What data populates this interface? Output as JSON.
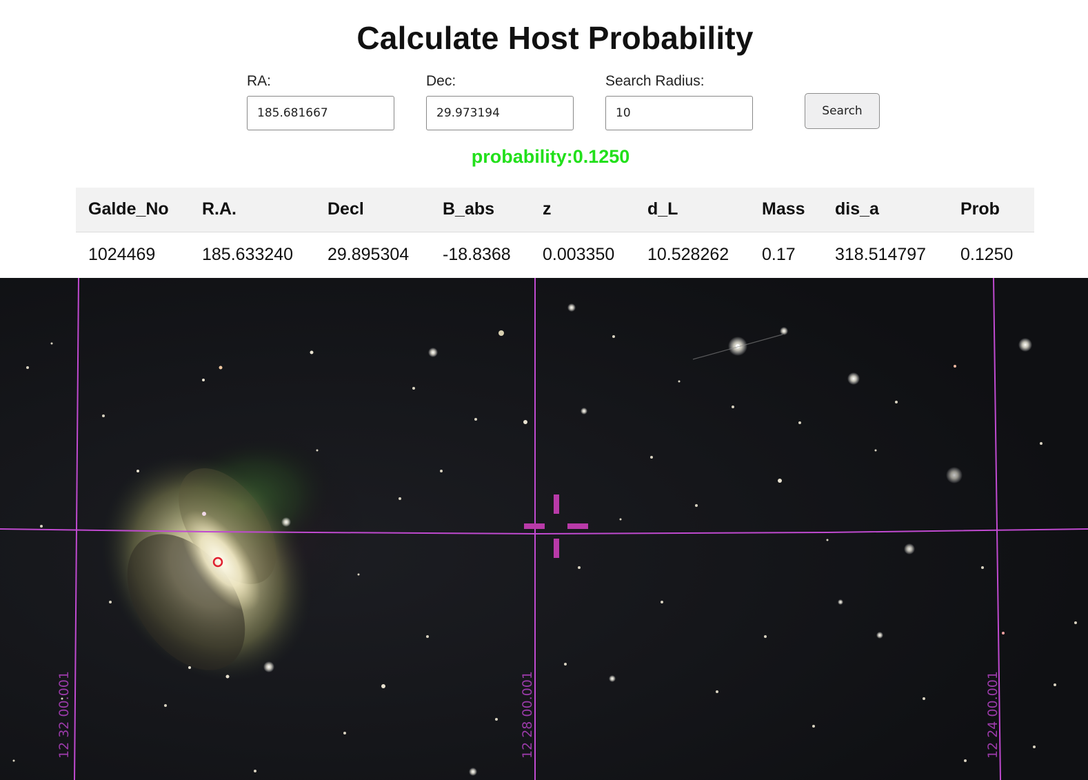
{
  "page": {
    "title": "Calculate Host Probability"
  },
  "search_form": {
    "ra_label": "RA:",
    "ra_value": "185.681667",
    "dec_label": "Dec:",
    "dec_value": "29.973194",
    "radius_label": "Search Radius:",
    "radius_value": "10",
    "search_button_label": "Search"
  },
  "result": {
    "probability_text": "probability:0.1250"
  },
  "table": {
    "columns": [
      "Galde_No",
      "R.A.",
      "Decl",
      "B_abs",
      "z",
      "d_L",
      "Mass",
      "dis_a",
      "Prob"
    ],
    "rows": [
      [
        "1024469",
        "185.633240",
        "29.895304",
        "-18.8368",
        "0.003350",
        "10.528262",
        "0.17",
        "318.514797",
        "0.1250"
      ]
    ]
  },
  "sky_image": {
    "grid_color": "#c04ad0",
    "ra_grid_labels": [
      "12 32 00.001",
      "12 28 00.001",
      "12 24 00.001"
    ],
    "marker_color": "#e02030"
  }
}
